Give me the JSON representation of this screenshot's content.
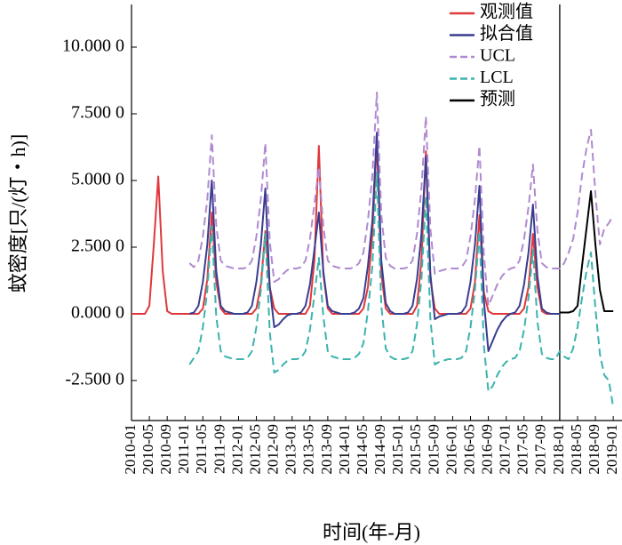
{
  "chart_data": {
    "type": "line",
    "xlabel": "时间(年-月)",
    "ylabel": "蚊密度[只/(灯・h)]",
    "legend": "upper right",
    "ylim": [
      -4,
      11.6
    ],
    "yticks": [
      {
        "value": -2.5,
        "label": "-2.500 0"
      },
      {
        "value": 0,
        "label": "0.000 0"
      },
      {
        "value": 2.5,
        "label": "2.500 0"
      },
      {
        "value": 5,
        "label": "5.000 0"
      },
      {
        "value": 7.5,
        "label": "7.500 0"
      },
      {
        "value": 10,
        "label": "10.000 0"
      }
    ],
    "categories": [
      "2010-01",
      null,
      null,
      null,
      "2010-05",
      null,
      null,
      null,
      "2010-09",
      null,
      null,
      null,
      "2011-01",
      null,
      null,
      null,
      "2011-05",
      null,
      null,
      null,
      "2011-09",
      null,
      null,
      null,
      "2012-01",
      null,
      null,
      null,
      "2012-05",
      null,
      null,
      null,
      "2012-09",
      null,
      null,
      null,
      "2013-01",
      null,
      null,
      null,
      "2013-05",
      null,
      null,
      null,
      "2013-09",
      null,
      null,
      null,
      "2014-01",
      null,
      null,
      null,
      "2014-05",
      null,
      null,
      null,
      "2014-09",
      null,
      null,
      null,
      "2015-01",
      null,
      null,
      null,
      "2015-05",
      null,
      null,
      null,
      "2015-09",
      null,
      null,
      null,
      "2016-01",
      null,
      null,
      null,
      "2016-05",
      null,
      null,
      null,
      "2016-09",
      null,
      null,
      null,
      "2017-01",
      null,
      null,
      null,
      "2017-05",
      null,
      null,
      null,
      "2017-09",
      null,
      null,
      null,
      "2018-01",
      null,
      null,
      null,
      "2018-05",
      null,
      null,
      null,
      "2018-09",
      null,
      null,
      null,
      "2019-01"
    ],
    "series": [
      {
        "name": "观测值",
        "color": "#e0383c",
        "style": "solid",
        "values": [
          0,
          0,
          0,
          0,
          0.3,
          2.6,
          5.15,
          1.6,
          0.1,
          0,
          0,
          0,
          0,
          0,
          0,
          0,
          0.2,
          1.3,
          3.8,
          1.2,
          0.2,
          0,
          0,
          0,
          0,
          0,
          0,
          0,
          0.2,
          1.1,
          3.1,
          1.0,
          0.2,
          0,
          0,
          0,
          0,
          0,
          0,
          0,
          0.3,
          2.0,
          6.3,
          1.5,
          0.2,
          0,
          0,
          0,
          0,
          0,
          0,
          0,
          0.2,
          1.0,
          3.0,
          6.5,
          1.5,
          0.2,
          0,
          0,
          0,
          0,
          0,
          0,
          0.3,
          2.0,
          6.1,
          1.3,
          0.2,
          0,
          0,
          0,
          0,
          0,
          0,
          0,
          0.2,
          1.2,
          3.7,
          0.8,
          0.1,
          0,
          0,
          0,
          0,
          0,
          0,
          0,
          0.2,
          1.0,
          3.0,
          1.0,
          0.1,
          0,
          0,
          0,
          0,
          null,
          null,
          null,
          null,
          null,
          null,
          null,
          null,
          null,
          null,
          null,
          null
        ]
      },
      {
        "name": "拟合值",
        "color": "#3a3d8f",
        "style": "solid",
        "values": [
          null,
          null,
          null,
          null,
          null,
          null,
          null,
          null,
          null,
          null,
          null,
          null,
          null,
          0.0,
          0.05,
          0.3,
          1.2,
          2.6,
          5.0,
          1.6,
          0.3,
          0.1,
          0.05,
          0.0,
          0.0,
          0.0,
          0.05,
          0.3,
          1.2,
          2.6,
          4.7,
          1.0,
          -0.5,
          -0.4,
          -0.2,
          -0.05,
          0.0,
          0.0,
          0.05,
          0.3,
          1.1,
          2.4,
          3.8,
          1.6,
          0.3,
          0.1,
          0.05,
          0.0,
          0.0,
          0.0,
          0.05,
          0.2,
          0.6,
          1.8,
          3.5,
          6.8,
          2.0,
          0.4,
          0.1,
          0.0,
          0.0,
          0.0,
          0.05,
          0.3,
          1.3,
          3.0,
          5.9,
          1.5,
          -0.2,
          -0.1,
          -0.05,
          0.0,
          0.0,
          0.0,
          0.05,
          0.3,
          1.2,
          2.6,
          4.8,
          0.5,
          -1.4,
          -1.0,
          -0.6,
          -0.3,
          -0.1,
          0.0,
          0.05,
          0.3,
          1.1,
          2.3,
          4.1,
          1.4,
          0.2,
          0.05,
          0.0,
          0.0,
          0.0,
          null,
          null,
          null,
          null,
          null,
          null,
          null,
          null,
          null,
          null,
          null,
          null
        ]
      },
      {
        "name": "UCL",
        "color": "#b08ad0",
        "style": "dashed",
        "values": [
          null,
          null,
          null,
          null,
          null,
          null,
          null,
          null,
          null,
          null,
          null,
          null,
          null,
          1.9,
          1.75,
          2.0,
          2.9,
          4.3,
          6.7,
          3.3,
          2.0,
          1.8,
          1.75,
          1.7,
          1.7,
          1.7,
          1.75,
          2.0,
          2.9,
          4.3,
          6.4,
          2.7,
          1.2,
          1.3,
          1.5,
          1.65,
          1.7,
          1.7,
          1.75,
          2.0,
          2.8,
          4.1,
          5.5,
          3.3,
          2.0,
          1.8,
          1.75,
          1.7,
          1.7,
          1.7,
          1.75,
          1.9,
          2.3,
          3.5,
          5.2,
          8.3,
          3.7,
          2.1,
          1.8,
          1.7,
          1.7,
          1.7,
          1.75,
          2.0,
          3.0,
          4.7,
          7.4,
          3.2,
          1.5,
          1.6,
          1.65,
          1.7,
          1.7,
          1.7,
          1.75,
          2.0,
          2.9,
          4.3,
          6.3,
          2.2,
          0.3,
          0.7,
          1.1,
          1.4,
          1.6,
          1.7,
          1.75,
          2.0,
          2.8,
          4.0,
          5.6,
          3.1,
          1.9,
          1.75,
          1.7,
          1.7,
          1.7,
          1.9,
          2.3,
          2.8,
          3.8,
          5.2,
          6.2,
          6.9,
          4.5,
          2.6,
          3.2,
          3.4,
          3.7
        ]
      },
      {
        "name": "LCL",
        "color": "#3bb3ad",
        "style": "dashed",
        "values": [
          null,
          null,
          null,
          null,
          null,
          null,
          null,
          null,
          null,
          null,
          null,
          null,
          null,
          -1.9,
          -1.65,
          -1.4,
          -0.5,
          0.9,
          3.3,
          -0.1,
          -1.4,
          -1.6,
          -1.65,
          -1.7,
          -1.7,
          -1.7,
          -1.65,
          -1.4,
          -0.5,
          0.9,
          3.0,
          -0.7,
          -2.2,
          -2.1,
          -1.9,
          -1.75,
          -1.7,
          -1.7,
          -1.65,
          -1.4,
          -0.6,
          0.7,
          2.1,
          -0.1,
          -1.4,
          -1.6,
          -1.65,
          -1.7,
          -1.7,
          -1.7,
          -1.65,
          -1.5,
          -1.1,
          0.1,
          1.8,
          5.3,
          0.3,
          -1.3,
          -1.6,
          -1.7,
          -1.7,
          -1.7,
          -1.65,
          -1.4,
          -0.4,
          1.3,
          4.4,
          -0.2,
          -1.9,
          -1.8,
          -1.75,
          -1.7,
          -1.7,
          -1.7,
          -1.65,
          -1.4,
          -0.5,
          0.9,
          3.1,
          -1.2,
          -2.9,
          -2.7,
          -2.3,
          -2.0,
          -1.8,
          -1.7,
          -1.65,
          -1.4,
          -0.6,
          0.6,
          2.4,
          -0.3,
          -1.5,
          -1.65,
          -1.7,
          -1.7,
          -1.4,
          -1.6,
          -1.7,
          -1.3,
          -0.5,
          0.6,
          1.6,
          2.3,
          0.2,
          -1.5,
          -2.3,
          -2.5,
          -3.5
        ]
      },
      {
        "name": "预测",
        "color": "#000000",
        "style": "solid",
        "values": [
          null,
          null,
          null,
          null,
          null,
          null,
          null,
          null,
          null,
          null,
          null,
          null,
          null,
          null,
          null,
          null,
          null,
          null,
          null,
          null,
          null,
          null,
          null,
          null,
          null,
          null,
          null,
          null,
          null,
          null,
          null,
          null,
          null,
          null,
          null,
          null,
          null,
          null,
          null,
          null,
          null,
          null,
          null,
          null,
          null,
          null,
          null,
          null,
          null,
          null,
          null,
          null,
          null,
          null,
          null,
          null,
          null,
          null,
          null,
          null,
          null,
          null,
          null,
          null,
          null,
          null,
          null,
          null,
          null,
          null,
          null,
          null,
          null,
          null,
          null,
          null,
          null,
          null,
          null,
          null,
          null,
          null,
          null,
          null,
          null,
          null,
          null,
          null,
          null,
          null,
          null,
          null,
          null,
          null,
          null,
          null,
          0.05,
          0.05,
          0.05,
          0.1,
          0.3,
          1.8,
          3.2,
          4.6,
          2.6,
          0.9,
          0.1,
          0.1,
          0.1
        ]
      }
    ]
  }
}
